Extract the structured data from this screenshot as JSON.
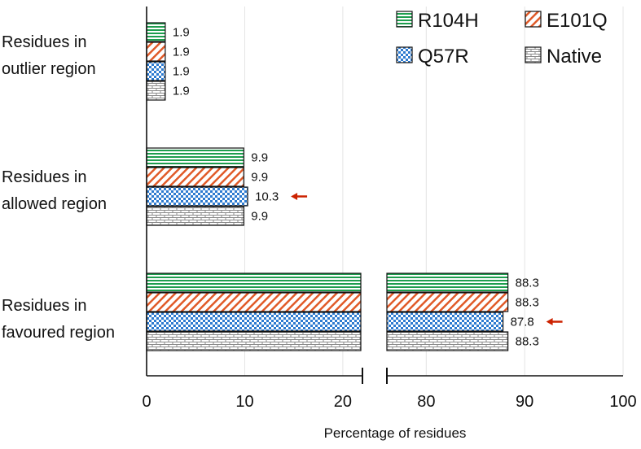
{
  "chart_data": {
    "type": "bar",
    "orientation": "horizontal",
    "axis_break": true,
    "categories": [
      {
        "label": [
          "Residues in",
          "outlier region"
        ]
      },
      {
        "label": [
          "Residues in",
          "allowed region"
        ]
      },
      {
        "label": [
          "Residues in",
          "favoured region"
        ]
      }
    ],
    "series": [
      {
        "name": "R104H",
        "values": [
          1.9,
          9.9,
          88.3
        ],
        "color": "#1e9e4e",
        "pattern": "hlines"
      },
      {
        "name": "E101Q",
        "values": [
          1.9,
          9.9,
          88.3
        ],
        "color": "#e05a28",
        "pattern": "diag"
      },
      {
        "name": "Q57R",
        "values": [
          1.9,
          10.3,
          87.8
        ],
        "color": "#2e7bd0",
        "pattern": "check"
      },
      {
        "name": "Native",
        "values": [
          1.9,
          9.9,
          88.3
        ],
        "color": "#8a8a8a",
        "pattern": "brick"
      }
    ],
    "value_labels": [
      [
        "1.9",
        "9.9",
        "88.3"
      ],
      [
        "1.9",
        "9.9",
        "88.3"
      ],
      [
        "1.9",
        "10.3",
        "87.8"
      ],
      [
        "1.9",
        "9.9",
        "88.3"
      ]
    ],
    "x_segments": [
      {
        "range": [
          0,
          22
        ],
        "ticks": [
          "0",
          "10",
          "20"
        ]
      },
      {
        "range": [
          76,
          100
        ],
        "ticks": [
          "80",
          "90",
          "100"
        ]
      }
    ],
    "xlabel": "Percentage of residues",
    "ylabel": "",
    "legend_position": "top-right",
    "grid": "vertical",
    "highlights": [
      {
        "series": "Q57R",
        "category_index": 1,
        "marker": "arrow",
        "color": "#cc2200"
      },
      {
        "series": "Q57R",
        "category_index": 2,
        "marker": "arrow",
        "color": "#cc2200"
      }
    ]
  }
}
